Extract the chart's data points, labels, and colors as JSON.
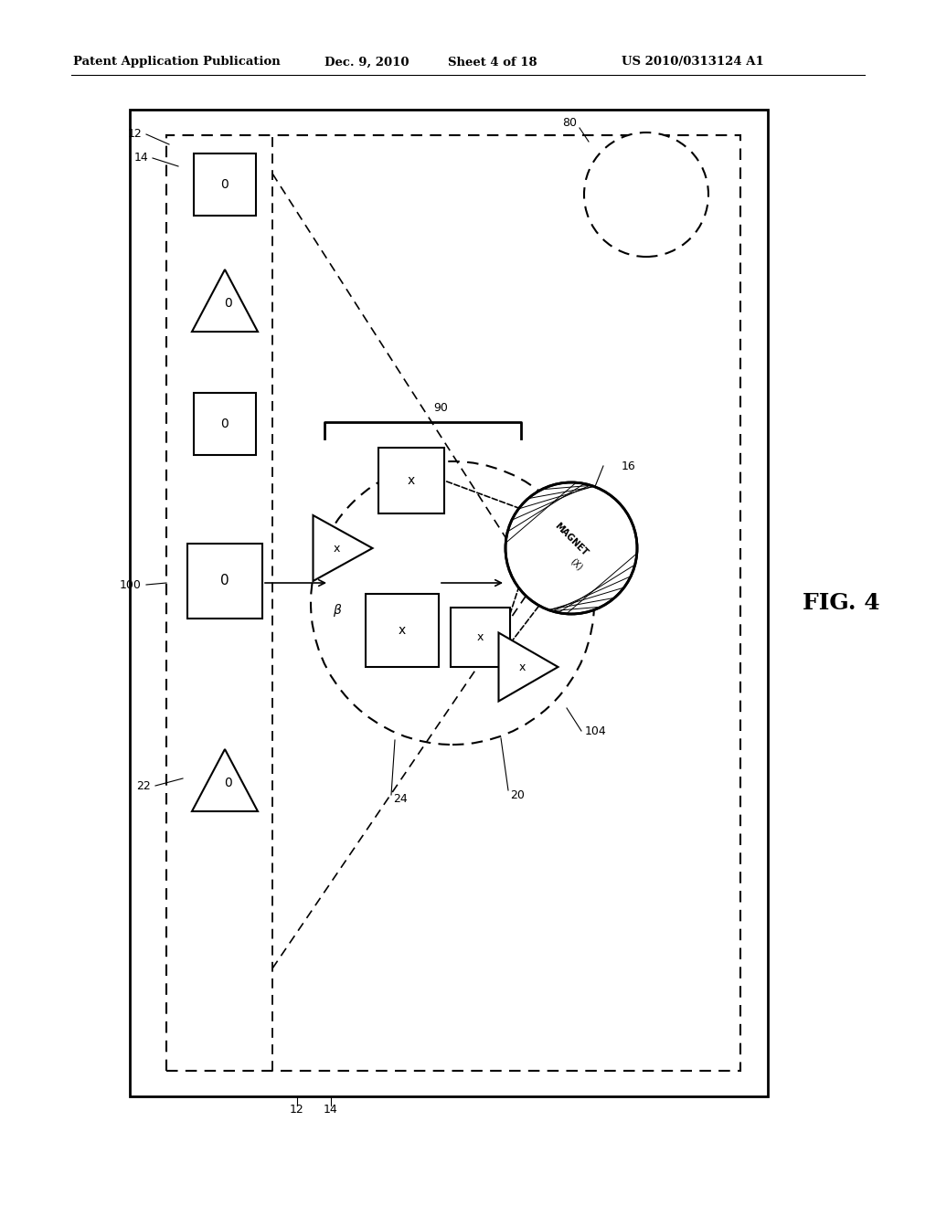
{
  "bg_color": "#ffffff",
  "header_text": "Patent Application Publication",
  "header_date": "Dec. 9, 2010",
  "header_sheet": "Sheet 4 of 18",
  "header_patent": "US 2010/0313124 A1",
  "fig_label": "FIG. 4",
  "label_12": "12",
  "label_14": "14",
  "label_22": "22",
  "label_100": "100",
  "label_80": "80",
  "label_90": "90",
  "label_16": "16",
  "label_104": "104",
  "label_20": "20",
  "label_24": "24",
  "label_beta": "β"
}
